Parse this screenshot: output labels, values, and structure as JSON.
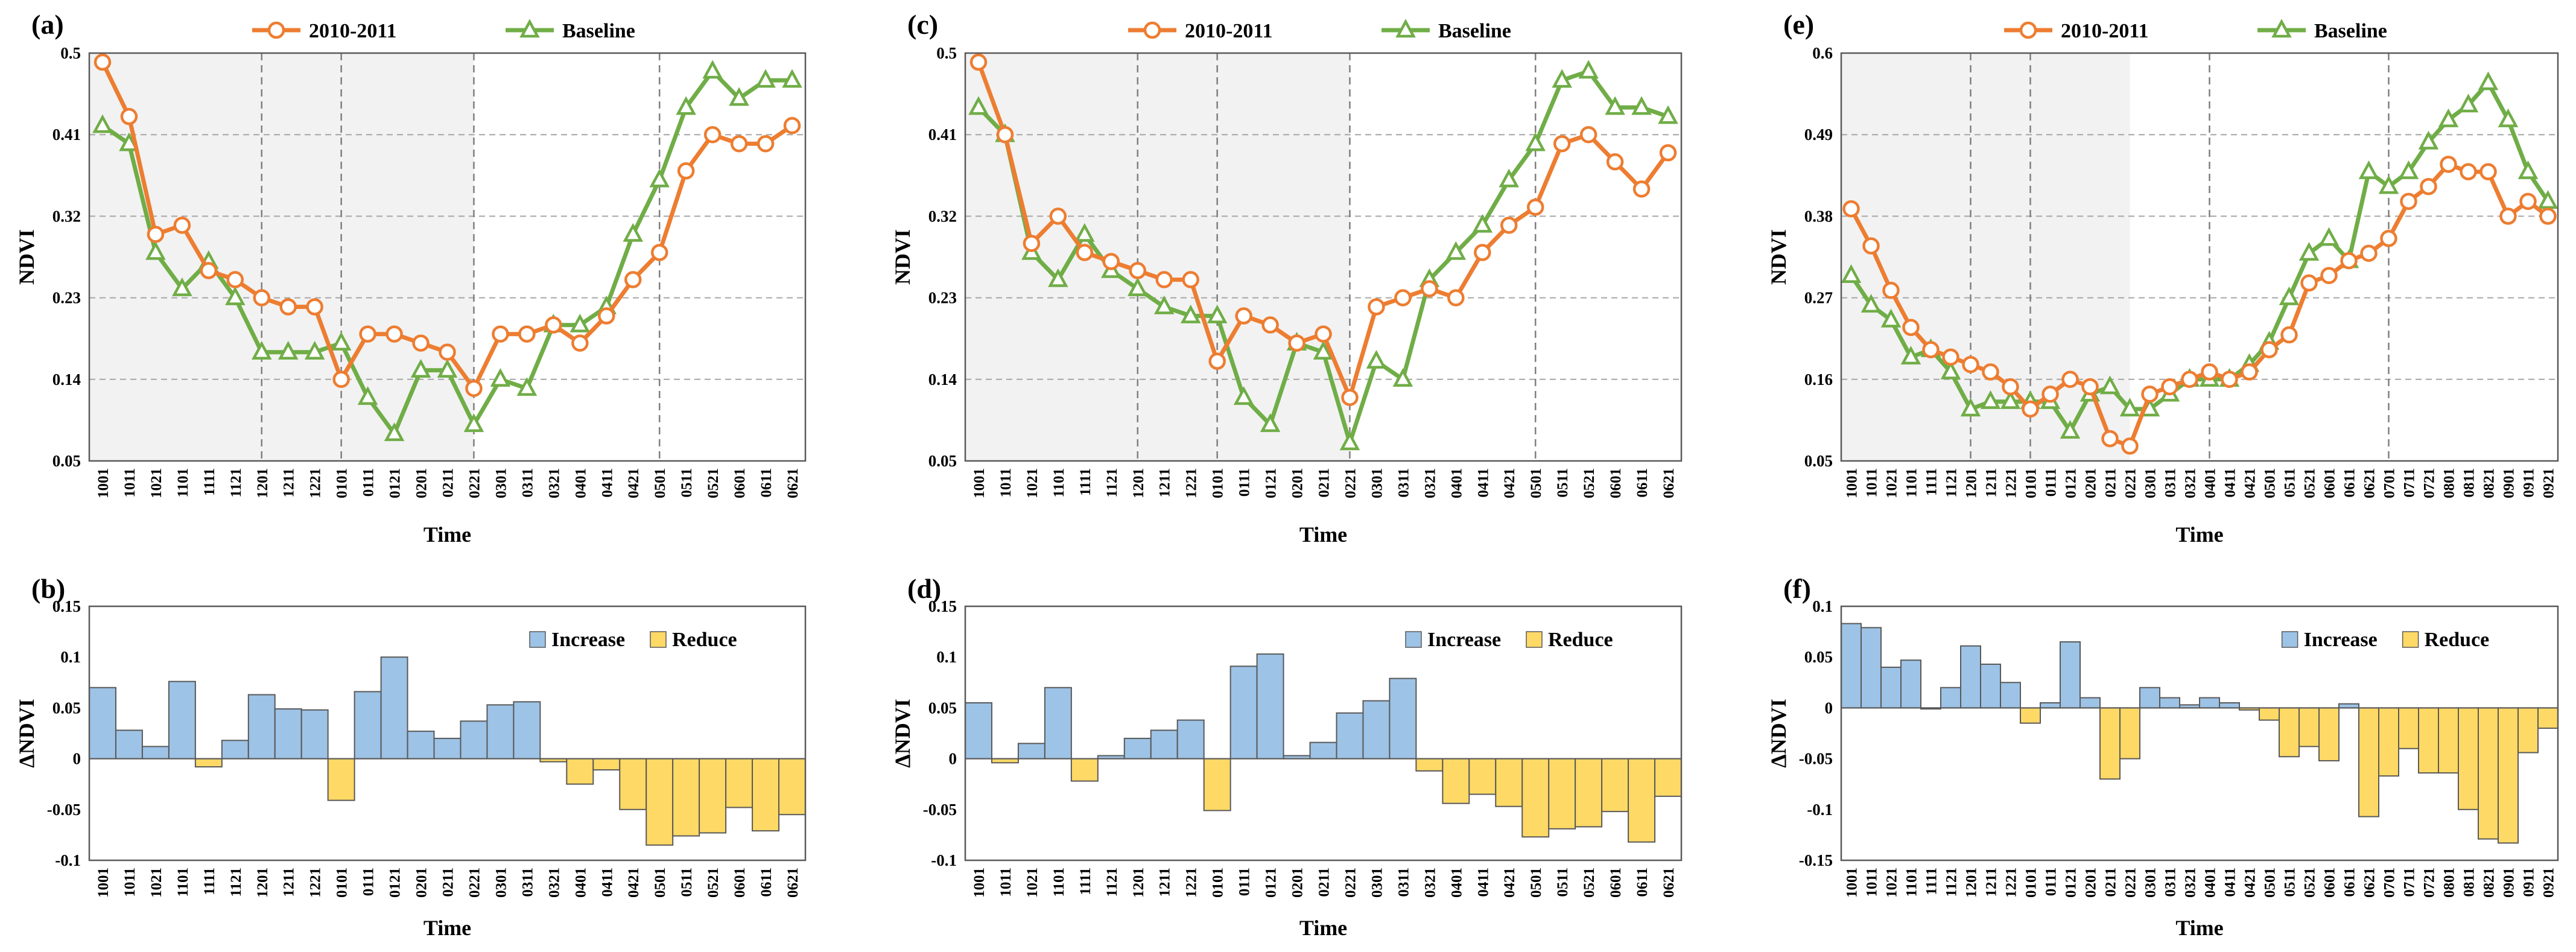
{
  "colors": {
    "series_2010": "#ED7D31",
    "series_baseline": "#70AD47",
    "increase": "#9DC3E6",
    "reduce": "#FFD966",
    "grid": "#A6A6A6",
    "shade": "#F2F2F2"
  },
  "chart_data": [
    {
      "panel": "(a)",
      "type": "line",
      "ylabel": "NDVI",
      "xlabel": "Time",
      "yticks": [
        "0.05",
        "0.14",
        "0.23",
        "0.32",
        "0.41",
        "0.5"
      ],
      "ylim": [
        0.05,
        0.5
      ],
      "categories": [
        "1001",
        "1011",
        "1021",
        "1101",
        "1111",
        "1121",
        "1201",
        "1211",
        "1221",
        "0101",
        "0111",
        "0121",
        "0201",
        "0211",
        "0221",
        "0301",
        "0311",
        "0321",
        "0401",
        "0411",
        "0421",
        "0501",
        "0511",
        "0521",
        "0601",
        "0611",
        "0621"
      ],
      "shaded_until": "0221",
      "vlines": [
        "1201",
        "0101",
        "0221",
        "0501"
      ],
      "series": [
        {
          "name": "2010-2011",
          "values": [
            0.49,
            0.43,
            0.3,
            0.31,
            0.26,
            0.25,
            0.23,
            0.22,
            0.22,
            0.14,
            0.19,
            0.19,
            0.18,
            0.17,
            0.13,
            0.19,
            0.19,
            0.2,
            0.18,
            0.21,
            0.25,
            0.28,
            0.37,
            0.41,
            0.4,
            0.4,
            0.42
          ]
        },
        {
          "name": "Baseline",
          "values": [
            0.42,
            0.4,
            0.28,
            0.24,
            0.27,
            0.23,
            0.17,
            0.17,
            0.17,
            0.18,
            0.12,
            0.08,
            0.15,
            0.15,
            0.09,
            0.14,
            0.13,
            0.2,
            0.2,
            0.22,
            0.3,
            0.36,
            0.44,
            0.48,
            0.45,
            0.47,
            0.47
          ]
        }
      ]
    },
    {
      "panel": "(b)",
      "type": "bar",
      "ylabel": "ΔNDVI",
      "xlabel": "Time",
      "yticks": [
        "-0.1",
        "-0.05",
        "0",
        "0.05",
        "0.1",
        "0.15"
      ],
      "ylim": [
        -0.1,
        0.15
      ],
      "legend": [
        "Increase",
        "Reduce"
      ],
      "categories": [
        "1001",
        "1011",
        "1021",
        "1101",
        "1111",
        "1121",
        "1201",
        "1211",
        "1221",
        "0101",
        "0111",
        "0121",
        "0201",
        "0211",
        "0221",
        "0301",
        "0311",
        "0321",
        "0401",
        "0411",
        "0421",
        "0501",
        "0511",
        "0521",
        "0601",
        "0611",
        "0621"
      ],
      "values": [
        0.07,
        0.028,
        0.012,
        0.076,
        -0.008,
        0.018,
        0.063,
        0.049,
        0.048,
        -0.041,
        0.066,
        0.1,
        0.027,
        0.02,
        0.037,
        0.053,
        0.056,
        -0.003,
        -0.025,
        -0.011,
        -0.05,
        -0.085,
        -0.076,
        -0.073,
        -0.048,
        -0.071,
        -0.055
      ]
    },
    {
      "panel": "(c)",
      "type": "line",
      "ylabel": "NDVI",
      "xlabel": "Time",
      "yticks": [
        "0.05",
        "0.14",
        "0.23",
        "0.32",
        "0.41",
        "0.5"
      ],
      "ylim": [
        0.05,
        0.5
      ],
      "categories": [
        "1001",
        "1011",
        "1021",
        "1101",
        "1111",
        "1121",
        "1201",
        "1211",
        "1221",
        "0101",
        "0111",
        "0121",
        "0201",
        "0211",
        "0221",
        "0301",
        "0311",
        "0321",
        "0401",
        "0411",
        "0421",
        "0501",
        "0511",
        "0521",
        "0601",
        "0611",
        "0621"
      ],
      "shaded_until": "0221",
      "vlines": [
        "1201",
        "0101",
        "0221",
        "0501"
      ],
      "series": [
        {
          "name": "2010-2011",
          "values": [
            0.49,
            0.41,
            0.29,
            0.32,
            0.28,
            0.27,
            0.26,
            0.25,
            0.25,
            0.16,
            0.21,
            0.2,
            0.18,
            0.19,
            0.12,
            0.22,
            0.23,
            0.24,
            0.23,
            0.28,
            0.31,
            0.33,
            0.4,
            0.41,
            0.38,
            0.35,
            0.39
          ]
        },
        {
          "name": "Baseline",
          "values": [
            0.44,
            0.41,
            0.28,
            0.25,
            0.3,
            0.26,
            0.24,
            0.22,
            0.21,
            0.21,
            0.12,
            0.09,
            0.18,
            0.17,
            0.07,
            0.16,
            0.14,
            0.25,
            0.28,
            0.31,
            0.36,
            0.4,
            0.47,
            0.48,
            0.44,
            0.44,
            0.43
          ]
        }
      ]
    },
    {
      "panel": "(d)",
      "type": "bar",
      "ylabel": "ΔNDVI",
      "xlabel": "Time",
      "yticks": [
        "-0.1",
        "-0.05",
        "0",
        "0.05",
        "0.1",
        "0.15"
      ],
      "ylim": [
        -0.1,
        0.15
      ],
      "legend": [
        "Increase",
        "Reduce"
      ],
      "categories": [
        "1001",
        "1011",
        "1021",
        "1101",
        "1111",
        "1121",
        "1201",
        "1211",
        "1221",
        "0101",
        "0111",
        "0121",
        "0201",
        "0211",
        "0221",
        "0301",
        "0311",
        "0321",
        "0401",
        "0411",
        "0421",
        "0501",
        "0511",
        "0521",
        "0601",
        "0611",
        "0621"
      ],
      "values": [
        0.055,
        -0.004,
        0.015,
        0.07,
        -0.022,
        0.003,
        0.02,
        0.028,
        0.038,
        -0.051,
        0.091,
        0.103,
        0.003,
        0.016,
        0.045,
        0.057,
        0.079,
        -0.012,
        -0.044,
        -0.035,
        -0.047,
        -0.077,
        -0.069,
        -0.067,
        -0.052,
        -0.082,
        -0.037
      ]
    },
    {
      "panel": "(e)",
      "type": "line",
      "ylabel": "NDVI",
      "xlabel": "Time",
      "yticks": [
        "0.05",
        "0.16",
        "0.27",
        "0.38",
        "0.49",
        "0.6"
      ],
      "ylim": [
        0.05,
        0.6
      ],
      "categories": [
        "1001",
        "1011",
        "1021",
        "1101",
        "1111",
        "1121",
        "1201",
        "1211",
        "1221",
        "0101",
        "0111",
        "0121",
        "0201",
        "0211",
        "0221",
        "0301",
        "0311",
        "0321",
        "0401",
        "0411",
        "0421",
        "0501",
        "0511",
        "0521",
        "0601",
        "0611",
        "0621",
        "0701",
        "0711",
        "0721",
        "0801",
        "0811",
        "0821",
        "0901",
        "0911",
        "0921"
      ],
      "shaded_until": "0221",
      "vlines": [
        "1201",
        "0101",
        "0401",
        "0701"
      ],
      "series": [
        {
          "name": "2010-2011",
          "values": [
            0.39,
            0.34,
            0.28,
            0.23,
            0.2,
            0.19,
            0.18,
            0.17,
            0.15,
            0.12,
            0.14,
            0.16,
            0.15,
            0.08,
            0.07,
            0.14,
            0.15,
            0.16,
            0.17,
            0.16,
            0.17,
            0.2,
            0.22,
            0.29,
            0.3,
            0.32,
            0.33,
            0.35,
            0.4,
            0.42,
            0.45,
            0.44,
            0.44,
            0.38,
            0.4,
            0.38
          ]
        },
        {
          "name": "Baseline",
          "values": [
            0.3,
            0.26,
            0.24,
            0.19,
            0.2,
            0.17,
            0.12,
            0.13,
            0.13,
            0.13,
            0.13,
            0.09,
            0.14,
            0.15,
            0.12,
            0.12,
            0.14,
            0.16,
            0.16,
            0.16,
            0.18,
            0.21,
            0.27,
            0.33,
            0.35,
            0.32,
            0.44,
            0.42,
            0.44,
            0.48,
            0.51,
            0.53,
            0.56,
            0.51,
            0.44,
            0.4
          ]
        }
      ]
    },
    {
      "panel": "(f)",
      "type": "bar",
      "ylabel": "ΔNDVI",
      "xlabel": "Time",
      "yticks": [
        "-0.15",
        "-0.1",
        "-0.05",
        "0",
        "0.05",
        "0.1"
      ],
      "ylim": [
        -0.15,
        0.1
      ],
      "legend": [
        "Increase",
        "Reduce"
      ],
      "categories": [
        "1001",
        "1011",
        "1021",
        "1101",
        "1111",
        "1121",
        "1201",
        "1211",
        "1221",
        "0101",
        "0111",
        "0121",
        "0201",
        "0211",
        "0221",
        "0301",
        "0311",
        "0321",
        "0401",
        "0411",
        "0421",
        "0501",
        "0511",
        "0521",
        "0601",
        "0611",
        "0621",
        "0701",
        "0711",
        "0721",
        "0801",
        "0811",
        "0821",
        "0901",
        "0911",
        "0921"
      ],
      "values": [
        0.083,
        0.079,
        0.04,
        0.047,
        -0.001,
        0.02,
        0.061,
        0.043,
        0.025,
        -0.015,
        0.005,
        0.065,
        0.01,
        -0.07,
        -0.05,
        0.02,
        0.01,
        0.003,
        0.01,
        0.005,
        -0.002,
        -0.012,
        -0.048,
        -0.038,
        -0.052,
        0.004,
        -0.107,
        -0.067,
        -0.04,
        -0.064,
        -0.064,
        -0.1,
        -0.129,
        -0.133,
        -0.044,
        -0.02
      ]
    }
  ]
}
